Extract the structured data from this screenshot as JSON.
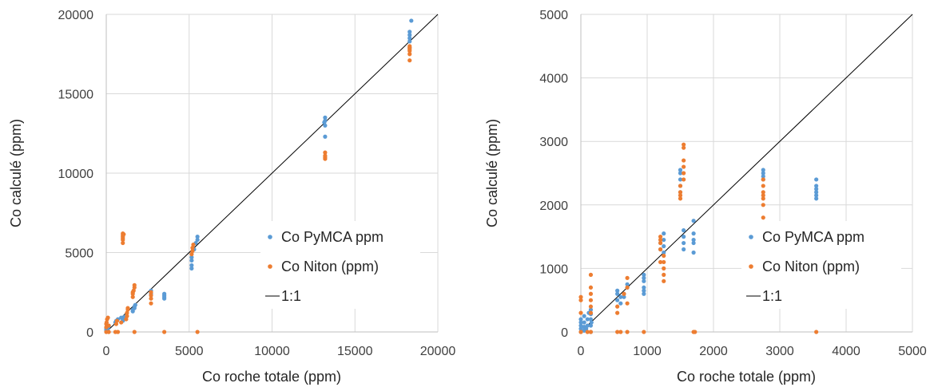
{
  "chart_data": [
    {
      "type": "scatter",
      "xlabel": "Co roche totale (ppm)",
      "ylabel": "Co calculé (ppm)",
      "xlim": [
        0,
        20000
      ],
      "ylim": [
        0,
        20000
      ],
      "xticks": [
        "0",
        "5000",
        "10000",
        "15000",
        "20000"
      ],
      "yticks": [
        "0",
        "5000",
        "10000",
        "15000",
        "20000"
      ],
      "xtick_values": [
        0,
        5000,
        10000,
        15000,
        20000
      ],
      "ytick_values": [
        0,
        5000,
        10000,
        15000,
        20000
      ],
      "grid": true,
      "legend_position": "right",
      "legend": [
        "Co PyMCA ppm",
        "Co Niton (ppm)",
        "1:1"
      ],
      "series": [
        {
          "name": "Co PyMCA ppm",
          "color": "#5B9BD5",
          "points": [
            [
              0,
              50
            ],
            [
              0,
              150
            ],
            [
              0,
              250
            ],
            [
              20,
              100
            ],
            [
              50,
              300
            ],
            [
              100,
              200
            ],
            [
              150,
              350
            ],
            [
              100,
              50
            ],
            [
              150,
              400
            ],
            [
              550,
              600
            ],
            [
              600,
              700
            ],
            [
              700,
              800
            ],
            [
              900,
              900
            ],
            [
              1000,
              700
            ],
            [
              1000,
              800
            ],
            [
              1100,
              950
            ],
            [
              1600,
              1300
            ],
            [
              1600,
              1400
            ],
            [
              1700,
              1500
            ],
            [
              1700,
              1600
            ],
            [
              1750,
              1700
            ],
            [
              2700,
              2400
            ],
            [
              2700,
              2600
            ],
            [
              3500,
              2100
            ],
            [
              3500,
              2200
            ],
            [
              3500,
              2300
            ],
            [
              3500,
              2400
            ],
            [
              5150,
              4000
            ],
            [
              5150,
              4200
            ],
            [
              5150,
              4500
            ],
            [
              5150,
              4700
            ],
            [
              5300,
              5200
            ],
            [
              5400,
              5600
            ],
            [
              5500,
              5800
            ],
            [
              5500,
              6000
            ],
            [
              13200,
              12300
            ],
            [
              13200,
              13000
            ],
            [
              13200,
              13300
            ],
            [
              13200,
              13500
            ],
            [
              13150,
              13200
            ],
            [
              18300,
              17900
            ],
            [
              18300,
              18300
            ],
            [
              18300,
              18500
            ],
            [
              18300,
              18700
            ],
            [
              18300,
              18900
            ],
            [
              18400,
              19600
            ]
          ]
        },
        {
          "name": "Co Niton (ppm)",
          "color": "#ED7D31",
          "points": [
            [
              0,
              0
            ],
            [
              0,
              300
            ],
            [
              0,
              500
            ],
            [
              20,
              600
            ],
            [
              50,
              800
            ],
            [
              100,
              900
            ],
            [
              150,
              0
            ],
            [
              150,
              400
            ],
            [
              550,
              0
            ],
            [
              600,
              500
            ],
            [
              650,
              700
            ],
            [
              700,
              0
            ],
            [
              900,
              600
            ],
            [
              1000,
              5600
            ],
            [
              1000,
              5800
            ],
            [
              1000,
              5900
            ],
            [
              1000,
              6000
            ],
            [
              1000,
              6100
            ],
            [
              1000,
              6200
            ],
            [
              1050,
              6150
            ],
            [
              1200,
              800
            ],
            [
              1250,
              1000
            ],
            [
              1250,
              1200
            ],
            [
              1300,
              1400
            ],
            [
              1300,
              1500
            ],
            [
              1600,
              2200
            ],
            [
              1600,
              2400
            ],
            [
              1600,
              2500
            ],
            [
              1650,
              2600
            ],
            [
              1700,
              2800
            ],
            [
              1700,
              2950
            ],
            [
              1700,
              0
            ],
            [
              2700,
              1800
            ],
            [
              2700,
              2100
            ],
            [
              2700,
              2300
            ],
            [
              2700,
              2500
            ],
            [
              3500,
              0
            ],
            [
              5150,
              4900
            ],
            [
              5200,
              5100
            ],
            [
              5200,
              5300
            ],
            [
              5250,
              5500
            ],
            [
              5500,
              0
            ],
            [
              13200,
              10900
            ],
            [
              13200,
              11000
            ],
            [
              13200,
              11100
            ],
            [
              13200,
              11300
            ],
            [
              18300,
              17100
            ],
            [
              18300,
              17500
            ],
            [
              18300,
              17700
            ],
            [
              18300,
              17800
            ],
            [
              18300,
              17900
            ],
            [
              18300,
              18000
            ]
          ]
        }
      ],
      "line": {
        "name": "1:1",
        "color": "#000000",
        "from": [
          0,
          0
        ],
        "to": [
          20000,
          20000
        ]
      }
    },
    {
      "type": "scatter",
      "xlabel": "Co roche totale (ppm)",
      "ylabel": "Co calculé (ppm)",
      "xlim": [
        0,
        5000
      ],
      "ylim": [
        0,
        5000
      ],
      "xticks": [
        "0",
        "1000",
        "2000",
        "3000",
        "4000",
        "5000"
      ],
      "yticks": [
        "0",
        "1000",
        "2000",
        "3000",
        "4000",
        "5000"
      ],
      "xtick_values": [
        0,
        1000,
        2000,
        3000,
        4000,
        5000
      ],
      "ytick_values": [
        0,
        1000,
        2000,
        3000,
        4000,
        5000
      ],
      "grid": true,
      "legend_position": "right",
      "legend": [
        "Co PyMCA ppm",
        "Co Niton (ppm)",
        "1:1"
      ],
      "series": [
        {
          "name": "Co PyMCA ppm",
          "color": "#5B9BD5",
          "points": [
            [
              0,
              0
            ],
            [
              0,
              50
            ],
            [
              0,
              100
            ],
            [
              0,
              150
            ],
            [
              0,
              200
            ],
            [
              50,
              20
            ],
            [
              50,
              80
            ],
            [
              50,
              150
            ],
            [
              50,
              250
            ],
            [
              80,
              50
            ],
            [
              100,
              100
            ],
            [
              100,
              200
            ],
            [
              120,
              300
            ],
            [
              150,
              0
            ],
            [
              150,
              100
            ],
            [
              150,
              200
            ],
            [
              150,
              280
            ],
            [
              150,
              350
            ],
            [
              160,
              150
            ],
            [
              550,
              500
            ],
            [
              550,
              600
            ],
            [
              550,
              650
            ],
            [
              600,
              450
            ],
            [
              600,
              550
            ],
            [
              650,
              550
            ],
            [
              650,
              600
            ],
            [
              700,
              700
            ],
            [
              700,
              750
            ],
            [
              950,
              600
            ],
            [
              950,
              650
            ],
            [
              950,
              700
            ],
            [
              950,
              800
            ],
            [
              950,
              850
            ],
            [
              950,
              900
            ],
            [
              1200,
              1300
            ],
            [
              1200,
              1400
            ],
            [
              1250,
              1250
            ],
            [
              1250,
              1350
            ],
            [
              1250,
              1450
            ],
            [
              1250,
              1550
            ],
            [
              1500,
              2200
            ],
            [
              1500,
              2300
            ],
            [
              1500,
              2400
            ],
            [
              1500,
              2500
            ],
            [
              1500,
              2550
            ],
            [
              1550,
              1300
            ],
            [
              1550,
              1400
            ],
            [
              1550,
              1500
            ],
            [
              1550,
              1600
            ],
            [
              1700,
              1250
            ],
            [
              1700,
              1400
            ],
            [
              1700,
              1450
            ],
            [
              1700,
              1550
            ],
            [
              1700,
              1750
            ],
            [
              2750,
              2400
            ],
            [
              2750,
              2450
            ],
            [
              2750,
              2500
            ],
            [
              2750,
              2550
            ],
            [
              3550,
              2100
            ],
            [
              3550,
              2150
            ],
            [
              3550,
              2200
            ],
            [
              3550,
              2250
            ],
            [
              3550,
              2300
            ],
            [
              3550,
              2400
            ]
          ]
        },
        {
          "name": "Co Niton (ppm)",
          "color": "#ED7D31",
          "points": [
            [
              0,
              0
            ],
            [
              0,
              300
            ],
            [
              0,
              500
            ],
            [
              0,
              550
            ],
            [
              100,
              0
            ],
            [
              150,
              0
            ],
            [
              150,
              300
            ],
            [
              150,
              400
            ],
            [
              150,
              500
            ],
            [
              150,
              600
            ],
            [
              150,
              700
            ],
            [
              150,
              900
            ],
            [
              550,
              0
            ],
            [
              550,
              300
            ],
            [
              550,
              400
            ],
            [
              600,
              0
            ],
            [
              650,
              600
            ],
            [
              700,
              0
            ],
            [
              700,
              450
            ],
            [
              700,
              700
            ],
            [
              700,
              850
            ],
            [
              950,
              0
            ],
            [
              1200,
              1100
            ],
            [
              1200,
              1300
            ],
            [
              1200,
              1400
            ],
            [
              1200,
              1450
            ],
            [
              1200,
              1500
            ],
            [
              1250,
              800
            ],
            [
              1250,
              900
            ],
            [
              1250,
              1000
            ],
            [
              1250,
              1100
            ],
            [
              1250,
              1200
            ],
            [
              1500,
              2100
            ],
            [
              1500,
              2150
            ],
            [
              1500,
              2200
            ],
            [
              1500,
              2300
            ],
            [
              1550,
              2400
            ],
            [
              1550,
              2500
            ],
            [
              1550,
              2600
            ],
            [
              1550,
              2700
            ],
            [
              1550,
              2900
            ],
            [
              1550,
              2950
            ],
            [
              1700,
              0
            ],
            [
              1720,
              0
            ],
            [
              2750,
              1800
            ],
            [
              2750,
              2000
            ],
            [
              2750,
              2100
            ],
            [
              2750,
              2150
            ],
            [
              2750,
              2200
            ],
            [
              2750,
              2300
            ],
            [
              2750,
              2400
            ],
            [
              3550,
              0
            ]
          ]
        }
      ],
      "line": {
        "name": "1:1",
        "color": "#000000",
        "from": [
          0,
          0
        ],
        "to": [
          5000,
          5000
        ]
      }
    }
  ]
}
